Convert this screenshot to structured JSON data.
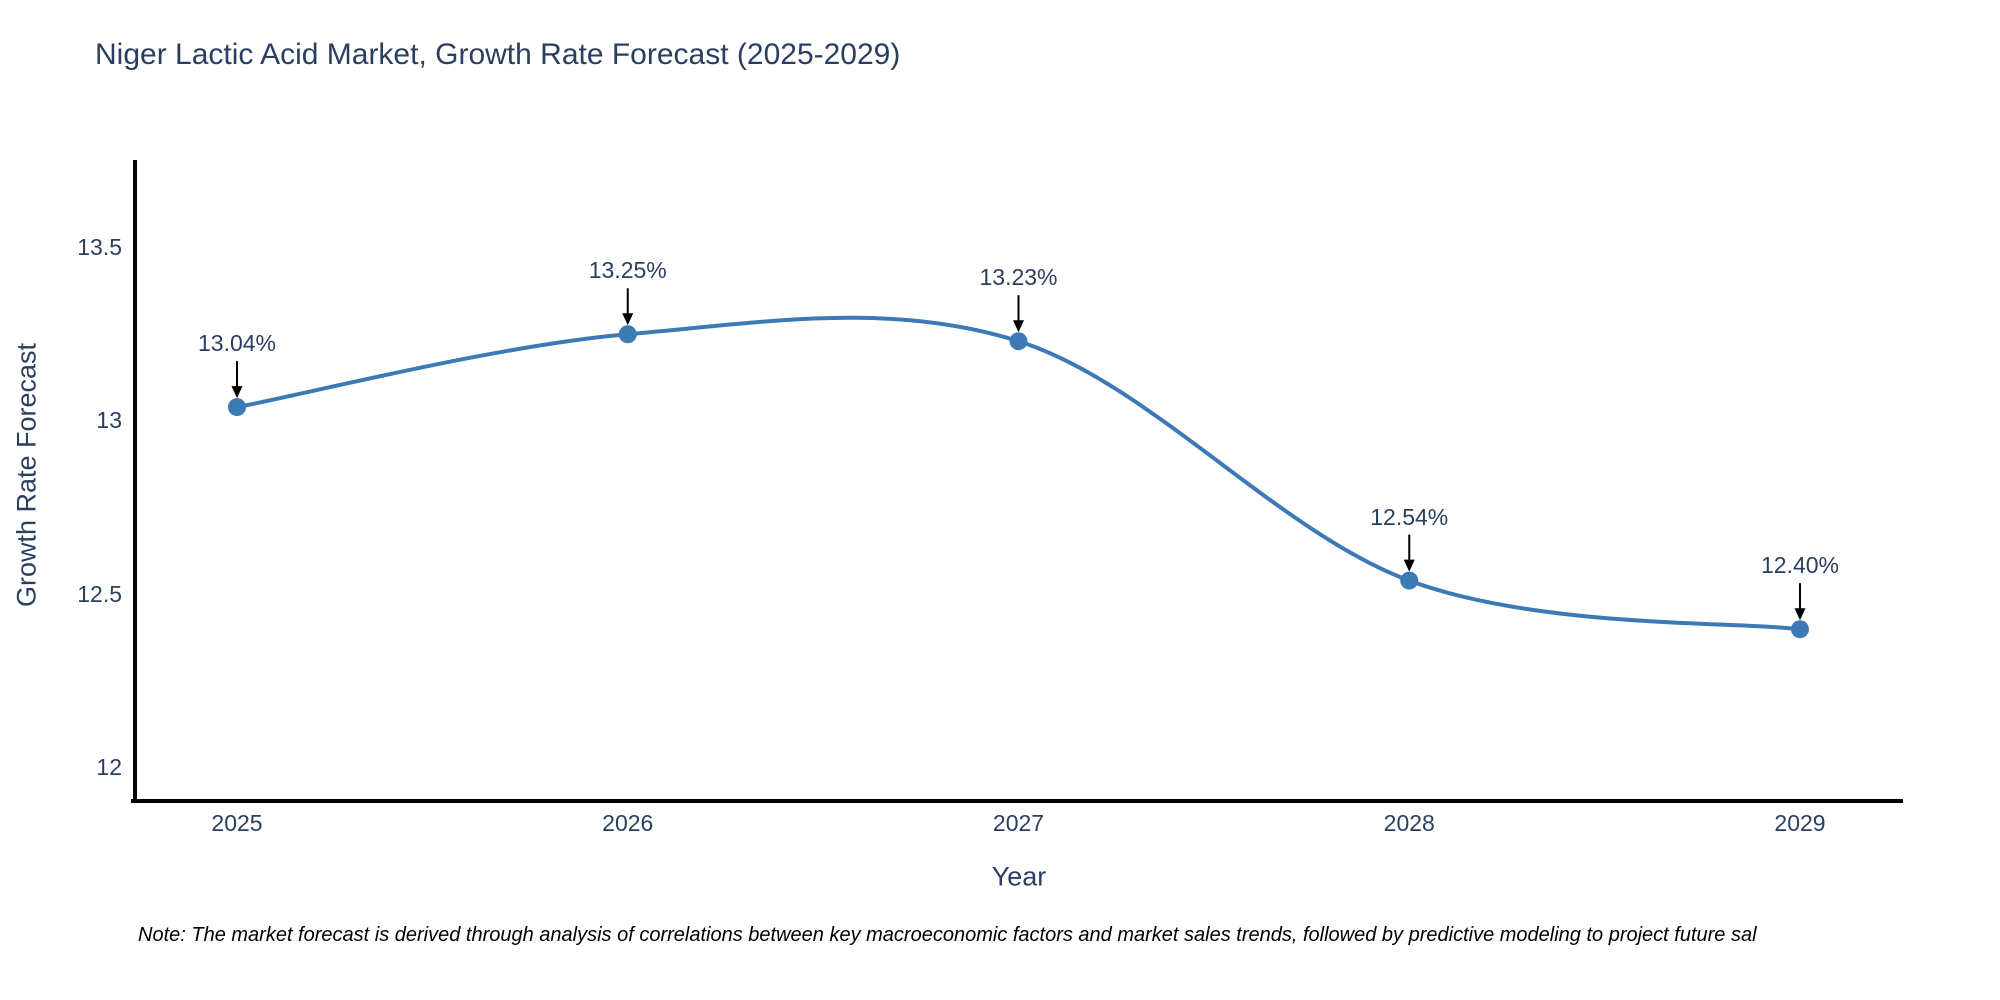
{
  "chart_data": {
    "type": "line",
    "title": "Niger Lactic Acid Market, Growth Rate Forecast (2025-2029)",
    "xlabel": "Year",
    "ylabel": "Growth Rate Forecast",
    "series_name": "Growth Rate Forecast",
    "categories": [
      "2025",
      "2026",
      "2027",
      "2028",
      "2029"
    ],
    "values": [
      13.04,
      13.25,
      13.23,
      12.54,
      12.4
    ],
    "point_labels": [
      "13.04%",
      "13.25%",
      "13.23%",
      "12.54%",
      "12.40%"
    ],
    "ytick_labels": [
      "13.5",
      "13",
      "12.5",
      "12"
    ],
    "ytick_values": [
      13.5,
      13.0,
      12.5,
      12.0
    ],
    "ylim": [
      11.9,
      13.75
    ],
    "line_shape": "spline",
    "markers": true,
    "grid": false,
    "legend_position": "none",
    "annotations_have_arrows": true,
    "colors": {
      "line": "#3d7ab5",
      "marker": "#3d7ab5",
      "axis": "#000000",
      "arrow": "#000000",
      "text": "#2a3f5f",
      "note_text": "#000000",
      "background": "#ffffff"
    }
  },
  "footer": {
    "note": "Note: The market forecast is derived through analysis of correlations between key macroeconomic factors and market sales trends, followed by predictive modeling to project future sal"
  }
}
